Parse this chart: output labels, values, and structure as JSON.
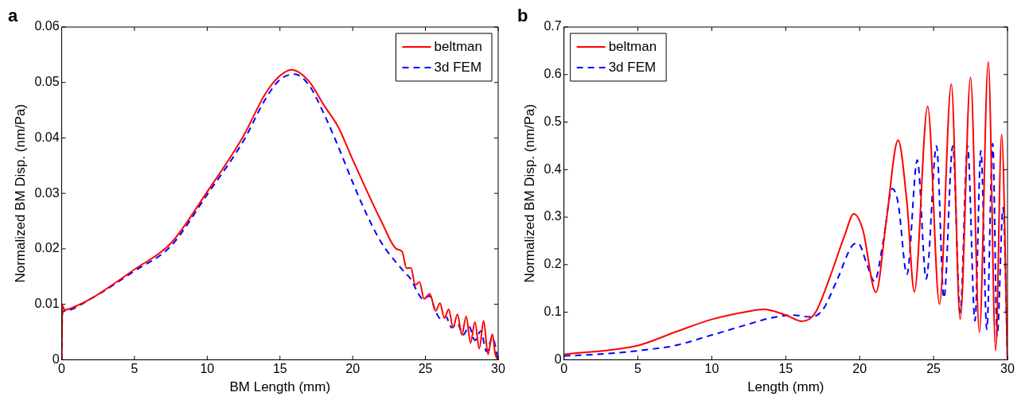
{
  "chart_data": [
    {
      "type": "line",
      "title": "a",
      "xlabel": "BM Length (mm)",
      "ylabel": "Normalized BM Disp. (nm/Pa)",
      "xlim": [
        0,
        30
      ],
      "xticks": [
        0,
        5,
        10,
        15,
        20,
        25,
        30
      ],
      "ylim": [
        0,
        0.06
      ],
      "yticks": [
        0,
        0.01,
        0.02,
        0.03,
        0.04,
        0.05,
        0.06
      ],
      "grid": false,
      "legend": "top right",
      "series": [
        {
          "name": "beltman",
          "color": "#ff0000",
          "line_style": "solid",
          "x": [
            0,
            0.05,
            0.2,
            1,
            2,
            5,
            7.5,
            10,
            12.5,
            14,
            15,
            15.8,
            17,
            18,
            19,
            20,
            21,
            22,
            23,
            23.4,
            23.7,
            24.0,
            24.3,
            24.6,
            24.9,
            25.3,
            25.7,
            26.0,
            26.3,
            26.6,
            26.9,
            27.2,
            27.5,
            27.8,
            28.1,
            28.4,
            28.7,
            29.0,
            29.3,
            29.6,
            29.8,
            30
          ],
          "values": [
            0,
            0.0098,
            0.009,
            0.0097,
            0.011,
            0.0163,
            0.021,
            0.0303,
            0.0404,
            0.048,
            0.0512,
            0.0523,
            0.0502,
            0.046,
            0.042,
            0.0361,
            0.0303,
            0.0248,
            0.02,
            0.0195,
            0.0165,
            0.0166,
            0.0135,
            0.014,
            0.011,
            0.0119,
            0.0088,
            0.0102,
            0.0075,
            0.0091,
            0.0058,
            0.0082,
            0.0045,
            0.0078,
            0.003,
            0.0068,
            0.002,
            0.007,
            0.001,
            0.0046,
            0.001,
            0
          ]
        },
        {
          "name": "3d FEM",
          "color": "#0000ff",
          "line_style": "dashed",
          "x": [
            0,
            0.05,
            0.2,
            2,
            5,
            7.5,
            10,
            12.5,
            14,
            15,
            16,
            17,
            18,
            19,
            20,
            21,
            22,
            23,
            23.5,
            24,
            24.5,
            24.8,
            25.3,
            25.6,
            26.0,
            26.4,
            26.8,
            27.2,
            27.6,
            28.0,
            28.4,
            28.8,
            29.2,
            29.6,
            30
          ],
          "values": [
            0,
            0.0085,
            0.0088,
            0.011,
            0.016,
            0.0205,
            0.0298,
            0.0395,
            0.047,
            0.0505,
            0.0515,
            0.0495,
            0.0445,
            0.0385,
            0.032,
            0.026,
            0.021,
            0.0175,
            0.016,
            0.0145,
            0.012,
            0.011,
            0.0115,
            0.0095,
            0.0075,
            0.0078,
            0.0058,
            0.0065,
            0.0045,
            0.006,
            0.0035,
            0.0052,
            0.0015,
            0.004,
            0
          ]
        }
      ]
    },
    {
      "type": "line",
      "title": "b",
      "xlabel": "Length (mm)",
      "ylabel": "Normalized BM Disp. (nm/Pa)",
      "xlim": [
        0,
        30
      ],
      "xticks": [
        0,
        5,
        10,
        15,
        20,
        25,
        30
      ],
      "ylim": [
        0,
        0.7
      ],
      "yticks": [
        0,
        0.1,
        0.2,
        0.3,
        0.4,
        0.5,
        0.6,
        0.7
      ],
      "grid": false,
      "legend": "top left",
      "series": [
        {
          "name": "beltman",
          "color": "#ff0000",
          "line_style": "solid",
          "x": [
            0,
            5,
            7.5,
            10,
            12.5,
            13.5,
            15,
            16.1,
            17,
            18,
            19,
            19.6,
            20.2,
            21.1,
            21.8,
            22.6,
            23.2,
            23.7,
            24.6,
            25.4,
            26.2,
            26.8,
            27.5,
            28.1,
            28.7,
            29.2,
            29.6,
            30
          ],
          "values": [
            0.011,
            0.03,
            0.058,
            0.085,
            0.102,
            0.106,
            0.094,
            0.081,
            0.099,
            0.175,
            0.263,
            0.307,
            0.275,
            0.142,
            0.292,
            0.462,
            0.33,
            0.143,
            0.533,
            0.117,
            0.58,
            0.085,
            0.594,
            0.058,
            0.627,
            0.019,
            0.474,
            0
          ]
        },
        {
          "name": "3d FEM",
          "color": "#0000ff",
          "line_style": "dashed",
          "x": [
            0,
            2.5,
            5,
            7.5,
            10,
            12.5,
            14,
            15.5,
            16.7,
            17.5,
            18.5,
            19.5,
            19.9,
            20.5,
            21.0,
            21.6,
            22.2,
            22.6,
            23.2,
            23.9,
            24.5,
            25.2,
            25.7,
            26.3,
            26.8,
            27.3,
            27.8,
            28.2,
            28.6,
            29.0,
            29.3,
            29.7,
            30
          ],
          "values": [
            0.008,
            0.012,
            0.019,
            0.03,
            0.052,
            0.075,
            0.088,
            0.094,
            0.09,
            0.105,
            0.17,
            0.24,
            0.245,
            0.2,
            0.165,
            0.25,
            0.36,
            0.33,
            0.18,
            0.42,
            0.17,
            0.45,
            0.13,
            0.45,
            0.1,
            0.45,
            0.082,
            0.44,
            0.064,
            0.455,
            0.05,
            0.32,
            0
          ]
        }
      ]
    }
  ]
}
